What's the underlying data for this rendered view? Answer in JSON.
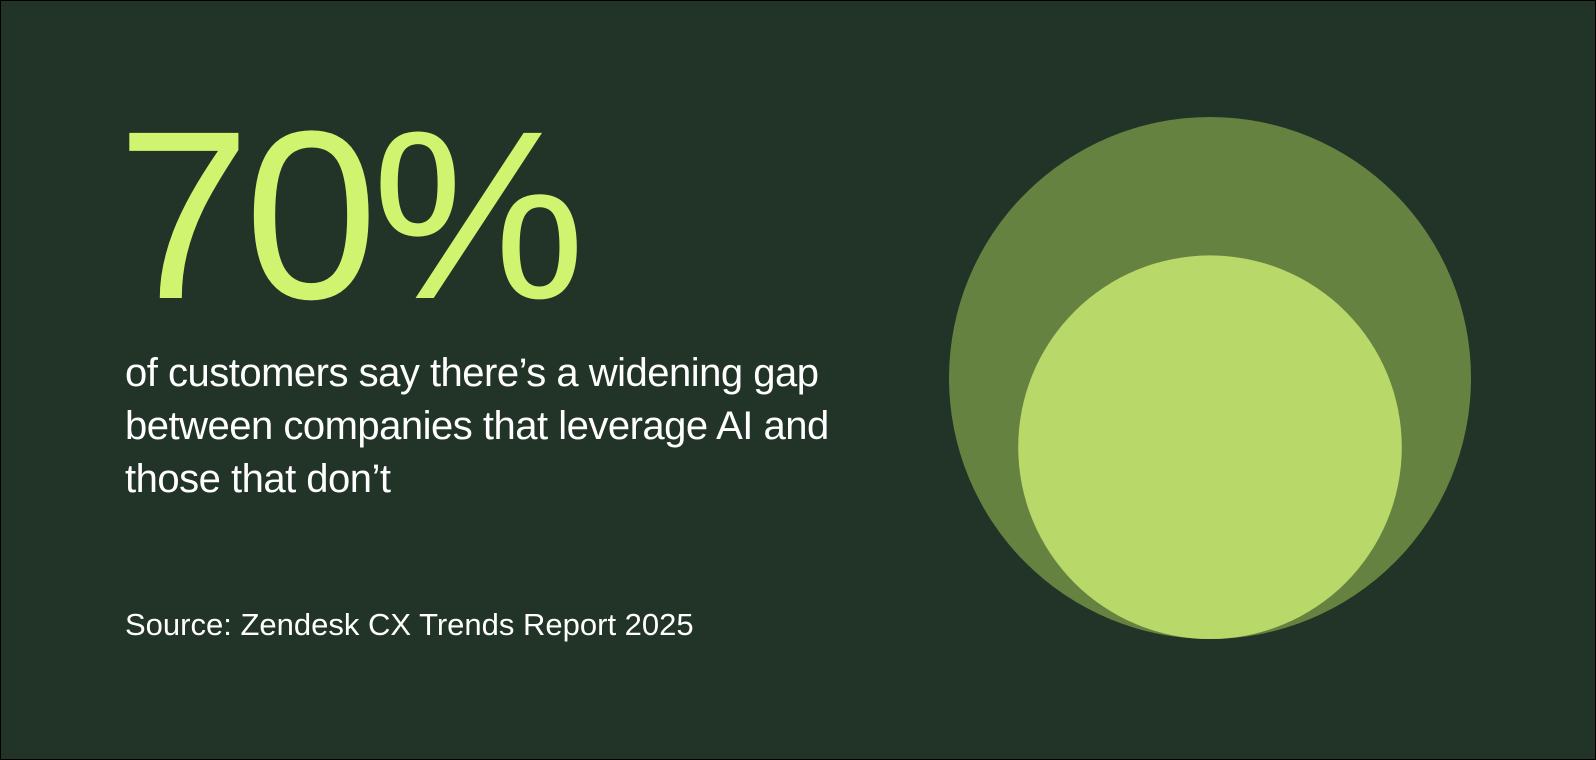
{
  "stat": {
    "value": "70%",
    "description": "of customers say there’s a widening gap between companies that leverage AI and those that don’t"
  },
  "source": {
    "text": "Source: Zendesk CX Trends Report 2025"
  },
  "colors": {
    "background": "#213427",
    "accent": "#d1f470",
    "text": "#ffffff",
    "outer_circle": "#658241",
    "inner_circle": "#b8d869"
  },
  "graphic": {
    "inner_to_outer_ratio": 0.735
  }
}
